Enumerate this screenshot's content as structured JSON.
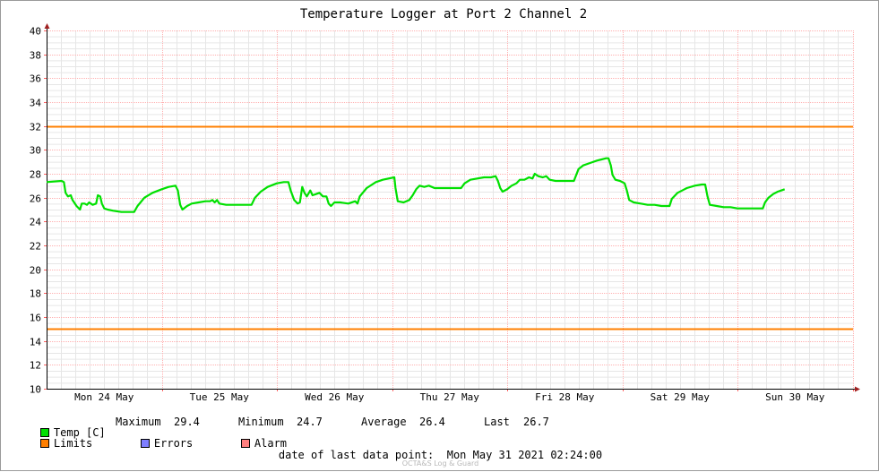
{
  "chart_data": {
    "type": "line",
    "title": "Temperature Logger at Port 2 Channel 2",
    "xlabel": "",
    "ylabel": "",
    "ylim": [
      10,
      40
    ],
    "ytick_step": 2,
    "yticks": [
      "10",
      "12",
      "14",
      "16",
      "18",
      "20",
      "22",
      "24",
      "26",
      "28",
      "30",
      "32",
      "34",
      "36",
      "38",
      "40"
    ],
    "xlim_days": [
      0,
      7.06
    ],
    "day_ticks": [
      {
        "day": 0.5,
        "label": "Mon 24 May"
      },
      {
        "day": 1.5,
        "label": "Tue 25 May"
      },
      {
        "day": 2.5,
        "label": "Wed 26 May"
      },
      {
        "day": 3.5,
        "label": "Thu 27 May"
      },
      {
        "day": 4.5,
        "label": "Fri 28 May"
      },
      {
        "day": 5.5,
        "label": "Sat 29 May"
      },
      {
        "day": 6.5,
        "label": "Sun 30 May"
      }
    ],
    "grid": true,
    "limits": {
      "upper": 32,
      "lower": 15,
      "color": "#ff7f00"
    },
    "series": [
      {
        "name": "Temp [C]",
        "color": "#00e000",
        "points": [
          [
            0.0,
            27.3
          ],
          [
            0.13,
            27.4
          ],
          [
            0.15,
            27.3
          ],
          [
            0.165,
            26.4
          ],
          [
            0.185,
            26.1
          ],
          [
            0.21,
            26.2
          ],
          [
            0.225,
            25.8
          ],
          [
            0.26,
            25.3
          ],
          [
            0.29,
            25.0
          ],
          [
            0.305,
            25.5
          ],
          [
            0.33,
            25.5
          ],
          [
            0.35,
            25.4
          ],
          [
            0.37,
            25.6
          ],
          [
            0.4,
            25.4
          ],
          [
            0.43,
            25.5
          ],
          [
            0.445,
            26.2
          ],
          [
            0.465,
            26.1
          ],
          [
            0.48,
            25.5
          ],
          [
            0.5,
            25.1
          ],
          [
            0.53,
            25.0
          ],
          [
            0.58,
            24.9
          ],
          [
            0.65,
            24.8
          ],
          [
            0.73,
            24.8
          ],
          [
            0.76,
            24.8
          ],
          [
            0.79,
            25.3
          ],
          [
            0.85,
            26.0
          ],
          [
            0.92,
            26.4
          ],
          [
            1.0,
            26.7
          ],
          [
            1.06,
            26.9
          ],
          [
            1.12,
            27.0
          ],
          [
            1.14,
            26.6
          ],
          [
            1.16,
            25.4
          ],
          [
            1.18,
            25.0
          ],
          [
            1.22,
            25.3
          ],
          [
            1.26,
            25.5
          ],
          [
            1.32,
            25.6
          ],
          [
            1.38,
            25.7
          ],
          [
            1.42,
            25.7
          ],
          [
            1.44,
            25.8
          ],
          [
            1.46,
            25.6
          ],
          [
            1.48,
            25.8
          ],
          [
            1.5,
            25.5
          ],
          [
            1.56,
            25.4
          ],
          [
            1.64,
            25.4
          ],
          [
            1.72,
            25.4
          ],
          [
            1.78,
            25.4
          ],
          [
            1.81,
            26.0
          ],
          [
            1.86,
            26.5
          ],
          [
            1.92,
            26.9
          ],
          [
            2.0,
            27.2
          ],
          [
            2.06,
            27.3
          ],
          [
            2.1,
            27.3
          ],
          [
            2.12,
            26.6
          ],
          [
            2.15,
            25.8
          ],
          [
            2.18,
            25.5
          ],
          [
            2.2,
            25.6
          ],
          [
            2.22,
            26.9
          ],
          [
            2.24,
            26.4
          ],
          [
            2.26,
            26.1
          ],
          [
            2.29,
            26.6
          ],
          [
            2.31,
            26.2
          ],
          [
            2.34,
            26.3
          ],
          [
            2.37,
            26.4
          ],
          [
            2.4,
            26.1
          ],
          [
            2.43,
            26.1
          ],
          [
            2.45,
            25.5
          ],
          [
            2.47,
            25.3
          ],
          [
            2.5,
            25.6
          ],
          [
            2.55,
            25.6
          ],
          [
            2.62,
            25.5
          ],
          [
            2.68,
            25.7
          ],
          [
            2.7,
            25.5
          ],
          [
            2.72,
            26.1
          ],
          [
            2.78,
            26.8
          ],
          [
            2.86,
            27.3
          ],
          [
            2.92,
            27.5
          ],
          [
            2.97,
            27.6
          ],
          [
            3.02,
            27.7
          ],
          [
            3.03,
            26.8
          ],
          [
            3.05,
            25.7
          ],
          [
            3.1,
            25.6
          ],
          [
            3.15,
            25.8
          ],
          [
            3.18,
            26.2
          ],
          [
            3.21,
            26.7
          ],
          [
            3.24,
            27.0
          ],
          [
            3.28,
            26.9
          ],
          [
            3.32,
            27.0
          ],
          [
            3.37,
            26.8
          ],
          [
            3.44,
            26.8
          ],
          [
            3.5,
            26.8
          ],
          [
            3.56,
            26.8
          ],
          [
            3.6,
            26.8
          ],
          [
            3.63,
            27.2
          ],
          [
            3.68,
            27.5
          ],
          [
            3.74,
            27.6
          ],
          [
            3.8,
            27.7
          ],
          [
            3.86,
            27.7
          ],
          [
            3.9,
            27.8
          ],
          [
            3.92,
            27.4
          ],
          [
            3.94,
            26.8
          ],
          [
            3.96,
            26.5
          ],
          [
            4.0,
            26.7
          ],
          [
            4.04,
            27.0
          ],
          [
            4.08,
            27.2
          ],
          [
            4.11,
            27.5
          ],
          [
            4.15,
            27.5
          ],
          [
            4.19,
            27.7
          ],
          [
            4.22,
            27.6
          ],
          [
            4.24,
            28.0
          ],
          [
            4.27,
            27.8
          ],
          [
            4.31,
            27.7
          ],
          [
            4.34,
            27.8
          ],
          [
            4.37,
            27.5
          ],
          [
            4.42,
            27.4
          ],
          [
            4.48,
            27.4
          ],
          [
            4.54,
            27.4
          ],
          [
            4.58,
            27.4
          ],
          [
            4.6,
            27.9
          ],
          [
            4.62,
            28.4
          ],
          [
            4.66,
            28.7
          ],
          [
            4.72,
            28.9
          ],
          [
            4.78,
            29.1
          ],
          [
            4.82,
            29.2
          ],
          [
            4.86,
            29.3
          ],
          [
            4.88,
            29.3
          ],
          [
            4.9,
            28.7
          ],
          [
            4.915,
            27.9
          ],
          [
            4.94,
            27.5
          ],
          [
            4.98,
            27.4
          ],
          [
            5.02,
            27.2
          ],
          [
            5.04,
            26.6
          ],
          [
            5.06,
            25.8
          ],
          [
            5.1,
            25.6
          ],
          [
            5.16,
            25.5
          ],
          [
            5.22,
            25.4
          ],
          [
            5.28,
            25.4
          ],
          [
            5.34,
            25.3
          ],
          [
            5.39,
            25.3
          ],
          [
            5.41,
            25.3
          ],
          [
            5.43,
            25.9
          ],
          [
            5.48,
            26.4
          ],
          [
            5.56,
            26.8
          ],
          [
            5.63,
            27.0
          ],
          [
            5.69,
            27.1
          ],
          [
            5.72,
            27.1
          ],
          [
            5.74,
            26.1
          ],
          [
            5.76,
            25.4
          ],
          [
            5.82,
            25.3
          ],
          [
            5.88,
            25.2
          ],
          [
            5.94,
            25.2
          ],
          [
            6.0,
            25.1
          ],
          [
            6.06,
            25.1
          ],
          [
            6.12,
            25.1
          ],
          [
            6.18,
            25.1
          ],
          [
            6.22,
            25.1
          ],
          [
            6.24,
            25.6
          ],
          [
            6.27,
            26.0
          ],
          [
            6.31,
            26.3
          ],
          [
            6.35,
            26.5
          ],
          [
            6.38,
            26.6
          ],
          [
            6.41,
            26.7
          ]
        ]
      }
    ],
    "stats": {
      "maximum": "29.4",
      "minimum": "24.7",
      "average": "26.4",
      "last": "26.7"
    }
  },
  "legend": {
    "temp_label": "Temp [C]",
    "limits_label": "Limits",
    "errors_label": "Errors",
    "alarm_label": "Alarm",
    "temp_color": "#00e000",
    "limits_color": "#ff7f00",
    "errors_color": "#7f7fff",
    "alarm_color": "#ff7f7f",
    "maximum_label": "Maximum",
    "minimum_label": "Minimum",
    "average_label": "Average",
    "last_label": "Last"
  },
  "footer": {
    "date_label": "date of last data point:",
    "date_value": "Mon May 31 2021 02:24:00",
    "watermark": "OCTA&S Log & Guard"
  }
}
